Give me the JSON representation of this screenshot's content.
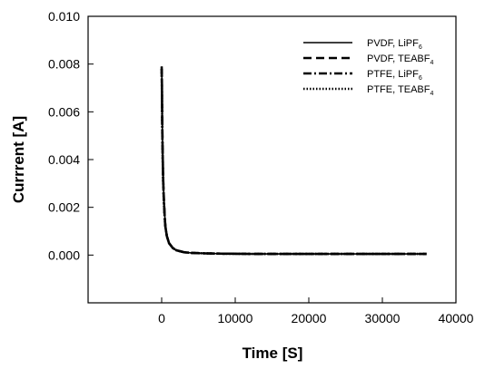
{
  "chart_data": {
    "type": "line",
    "title": "",
    "xlabel": "Time [S]",
    "ylabel": "Currrent [A]",
    "xlim": [
      -10000,
      40000
    ],
    "ylim": [
      -0.002,
      0.01
    ],
    "x_ticks": [
      "0",
      "10000",
      "20000",
      "30000",
      "40000"
    ],
    "x_tick_values": [
      0,
      10000,
      20000,
      30000,
      40000
    ],
    "y_ticks": [
      "0.000",
      "0.002",
      "0.004",
      "0.006",
      "0.008",
      "0.010"
    ],
    "y_tick_values": [
      0.0,
      0.002,
      0.004,
      0.006,
      0.008,
      0.01
    ],
    "grid": false,
    "legend_position": "top-right",
    "series": [
      {
        "name": "PVDF, LiPF6",
        "legend": {
          "main": "PVDF, LiPF",
          "sub": "6"
        },
        "dash": "solid",
        "x": [
          0,
          30,
          60,
          100,
          150,
          200,
          300,
          400,
          500,
          700,
          1000,
          1500,
          2000,
          3000,
          4000,
          6000,
          8000,
          12000,
          16000,
          20000,
          25000,
          30000,
          36000
        ],
        "y": [
          0.0079,
          0.0074,
          0.0062,
          0.0051,
          0.0041,
          0.0033,
          0.0024,
          0.0018,
          0.0013,
          0.0008,
          0.0005,
          0.0003,
          0.0002,
          0.00012,
          9e-05,
          7e-05,
          6e-05,
          5e-05,
          5e-05,
          5e-05,
          5e-05,
          5e-05,
          5e-05
        ]
      },
      {
        "name": "PVDF, TEABF4",
        "legend": {
          "main": "PVDF, TEABF",
          "sub": "4"
        },
        "dash": "dashed",
        "x": [
          0,
          30,
          60,
          100,
          150,
          200,
          300,
          400,
          500,
          700,
          1000,
          1500,
          2000,
          3000,
          4000,
          6000,
          8000,
          12000,
          16000,
          20000,
          25000,
          30000,
          36000
        ],
        "y": [
          0.0079,
          0.0073,
          0.0061,
          0.005,
          0.004,
          0.0032,
          0.0023,
          0.0017,
          0.0012,
          0.0008,
          0.0005,
          0.0003,
          0.0002,
          0.00012,
          9e-05,
          7e-05,
          6e-05,
          5e-05,
          5e-05,
          5e-05,
          5e-05,
          5e-05,
          5e-05
        ]
      },
      {
        "name": "PTFE, LiPF6",
        "legend": {
          "main": "PTFE, LiPF",
          "sub": "6"
        },
        "dash": "dashdot",
        "x": [
          0,
          30,
          60,
          100,
          150,
          200,
          300,
          400,
          500,
          700,
          1000,
          1500,
          2000,
          3000,
          4000,
          6000,
          8000,
          12000,
          16000,
          20000,
          25000,
          30000,
          36000
        ],
        "y": [
          0.0078,
          0.0072,
          0.006,
          0.0049,
          0.004,
          0.0032,
          0.0023,
          0.0017,
          0.0012,
          0.0008,
          0.0005,
          0.0003,
          0.0002,
          0.00012,
          9e-05,
          7e-05,
          6e-05,
          5e-05,
          5e-05,
          5e-05,
          5e-05,
          5e-05,
          5e-05
        ]
      },
      {
        "name": "PTFE, TEABF4",
        "legend": {
          "main": "PTFE, TEABF",
          "sub": "4"
        },
        "dash": "dotted",
        "x": [
          0,
          30,
          60,
          100,
          150,
          200,
          300,
          400,
          500,
          700,
          1000,
          1500,
          2000,
          3000,
          4000,
          6000,
          8000,
          12000,
          16000,
          20000,
          25000,
          30000,
          36000
        ],
        "y": [
          0.0078,
          0.0071,
          0.0059,
          0.0048,
          0.0039,
          0.0031,
          0.0022,
          0.0016,
          0.0012,
          0.0008,
          0.0005,
          0.0003,
          0.0002,
          0.00012,
          9e-05,
          7e-05,
          6e-05,
          5e-05,
          5e-05,
          5e-05,
          5e-05,
          5e-05,
          5e-05
        ]
      }
    ]
  }
}
